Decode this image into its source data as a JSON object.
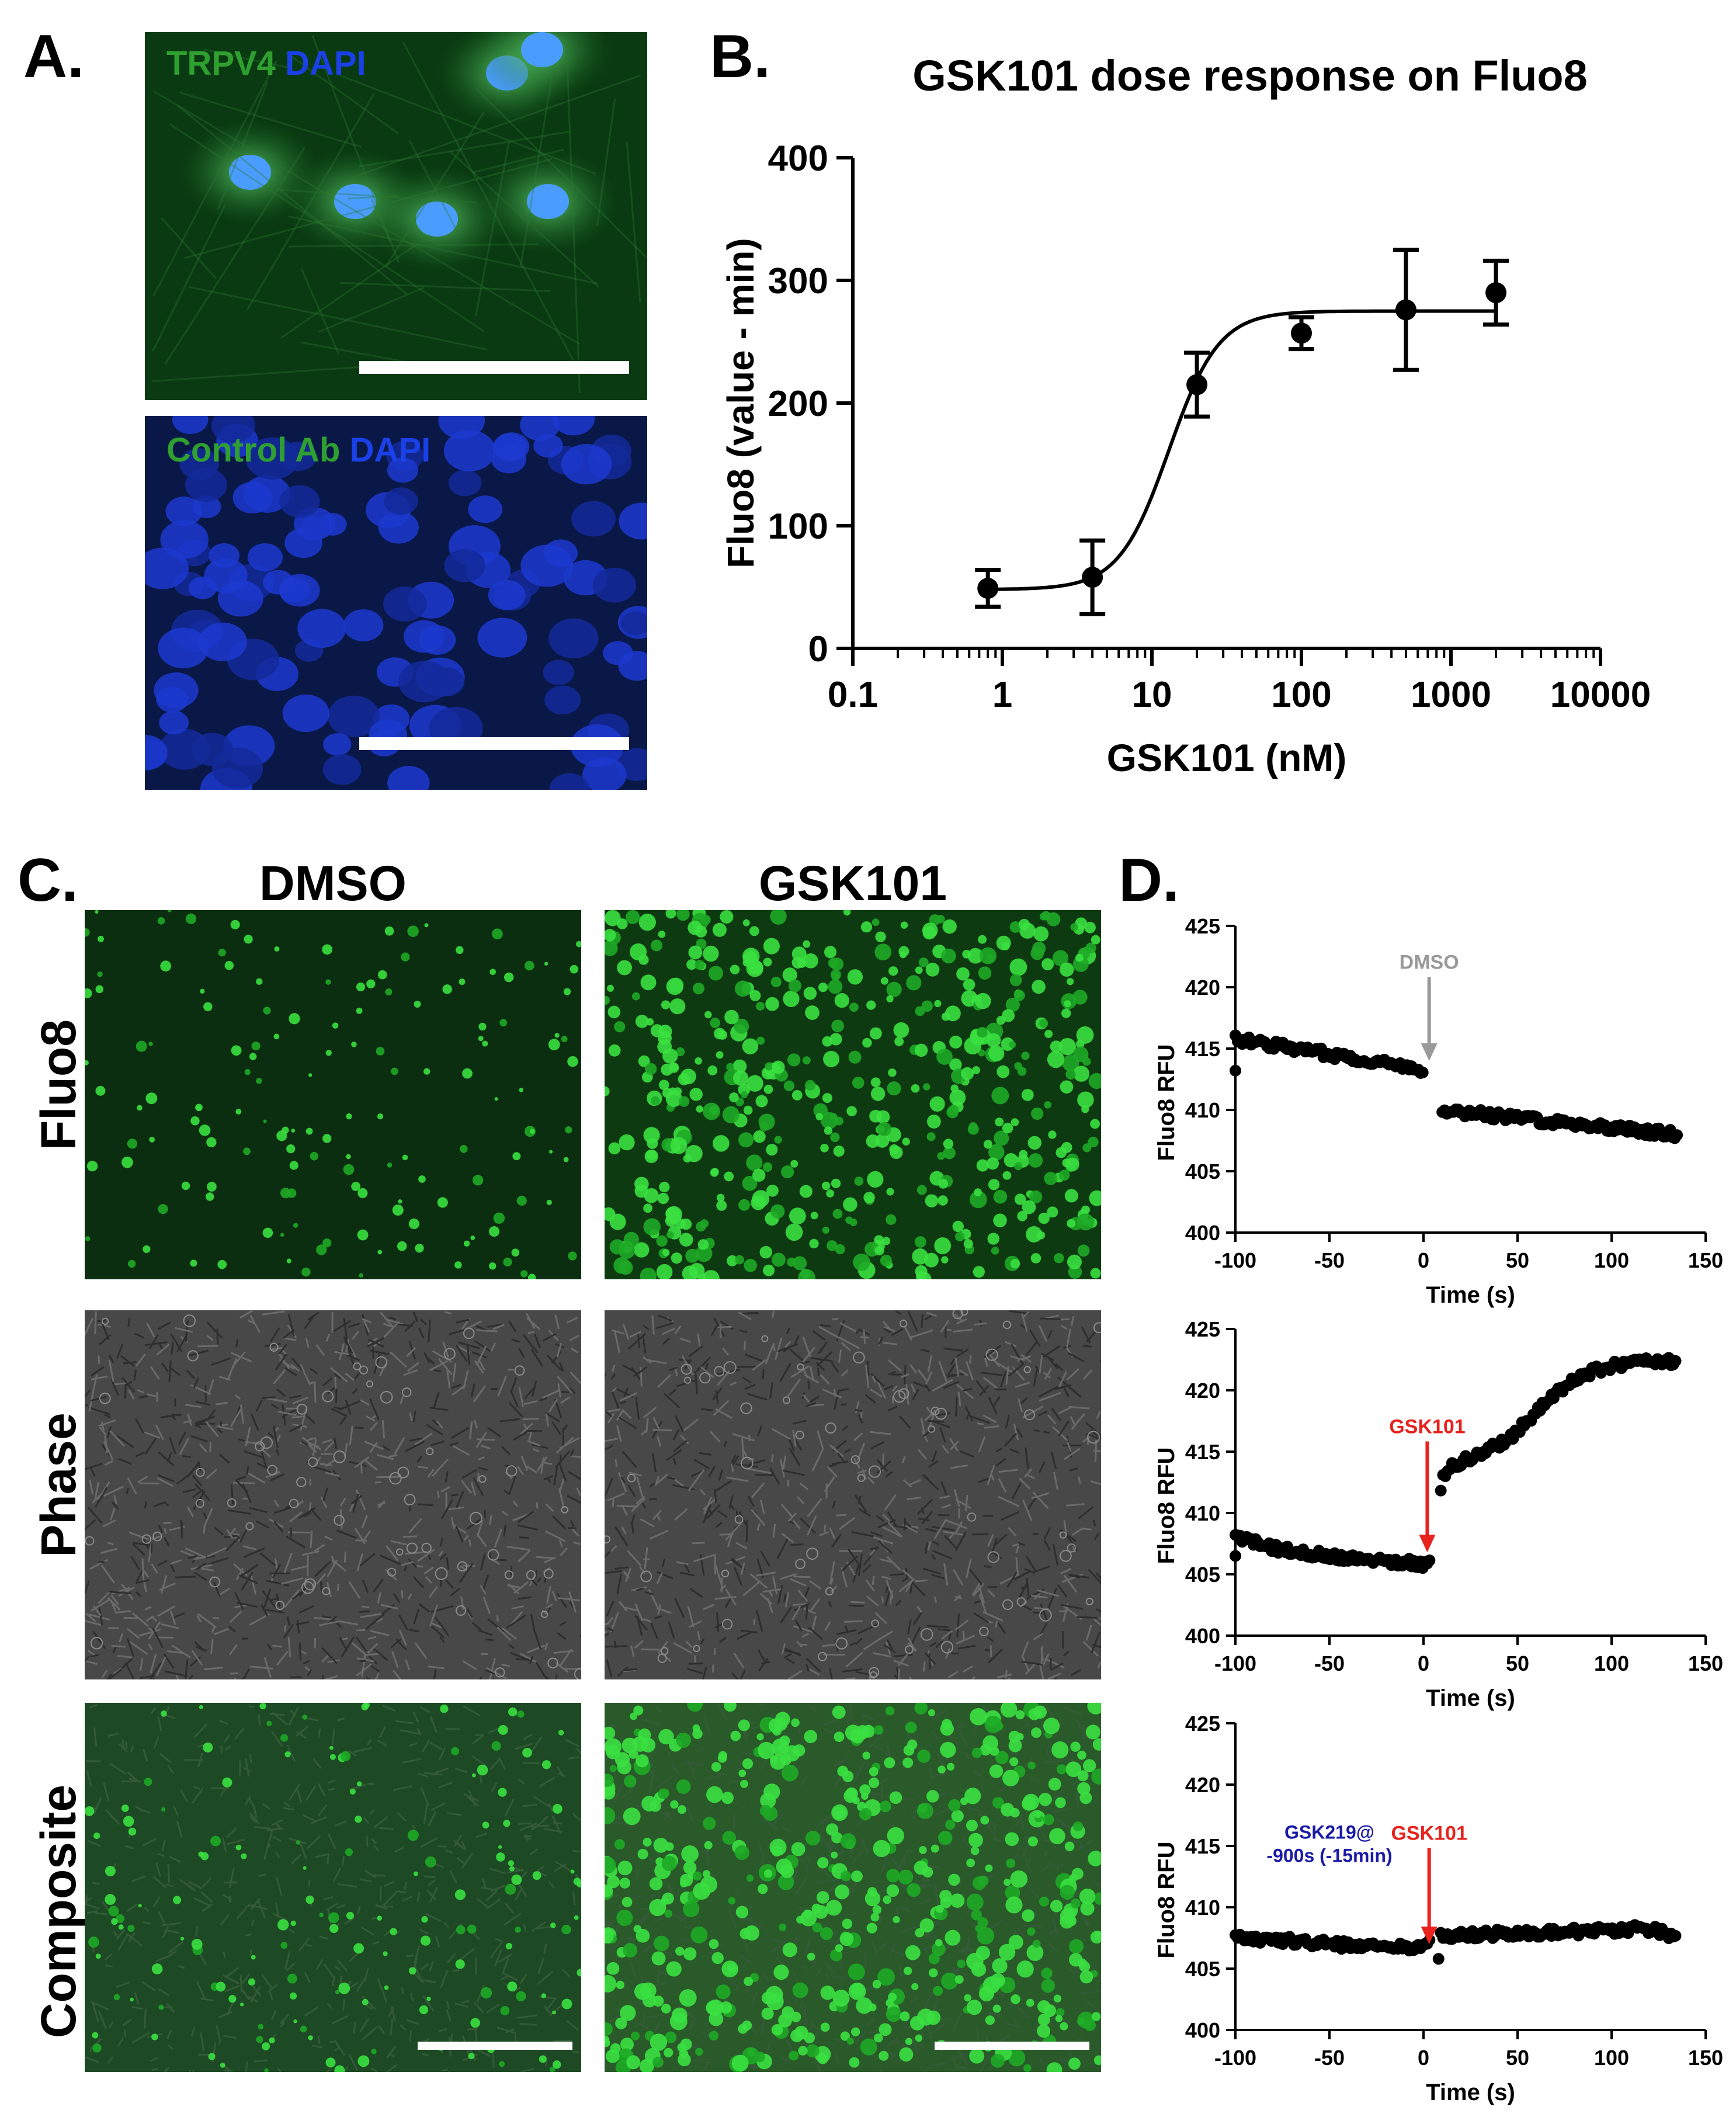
{
  "panels": {
    "A": {
      "letter": "A.",
      "images": [
        {
          "label_parts": [
            {
              "text": "TRPV4",
              "color": "#2fa030"
            },
            {
              "text": "DAPI",
              "color": "#1a40e8"
            }
          ],
          "style": "trpv4"
        },
        {
          "label_parts": [
            {
              "text": "Control Ab",
              "color": "#2fa030"
            },
            {
              "text": "DAPI",
              "color": "#1a40e8"
            }
          ],
          "style": "control"
        }
      ]
    },
    "B": {
      "letter": "B."
    },
    "C": {
      "letter": "C.",
      "columns": [
        "DMSO",
        "GSK101"
      ],
      "rows": [
        "Fluo8",
        "Phase",
        "Composite"
      ]
    },
    "D": {
      "letter": "D."
    }
  },
  "colors": {
    "green_label": "#2fa030",
    "blue_label": "#1a40e8",
    "dmso_arrow": "#999999",
    "gsk101_arrow": "#e8221c",
    "gsk219_text": "#1a1aa8"
  },
  "chart_data": [
    {
      "id": "B",
      "type": "scatter",
      "title": "GSK101 dose response on Fluo8",
      "xlabel": "GSK101 (nM)",
      "ylabel": "Fluo8 (value - min)",
      "xscale": "log",
      "xlim": [
        0.1,
        10000
      ],
      "ylim": [
        0,
        400
      ],
      "xticks": [
        0.1,
        1,
        10,
        100,
        1000,
        10000
      ],
      "xtick_labels": [
        "0.1",
        "1",
        "10",
        "100",
        "1000",
        "10000"
      ],
      "yticks": [
        0,
        100,
        200,
        300,
        400
      ],
      "ytick_labels": [
        "0",
        "100",
        "200",
        "300",
        "400"
      ],
      "x": [
        0.8,
        4,
        20,
        100,
        500,
        2000
      ],
      "y": [
        49,
        58,
        215,
        257,
        276,
        290
      ],
      "yerr": [
        15,
        30,
        26,
        13,
        49,
        26
      ],
      "fit": {
        "bottom": 48,
        "top": 275,
        "ec50": 13,
        "hill": 2.6
      }
    },
    {
      "id": "D1",
      "type": "scatter",
      "xlabel": "Time (s)",
      "ylabel": "Fluo8 RFU",
      "xlim": [
        -100,
        150
      ],
      "ylim": [
        400,
        425
      ],
      "xticks": [
        -100,
        -50,
        0,
        50,
        100,
        150
      ],
      "xtick_labels": [
        "-100",
        "-50",
        "0",
        "50",
        "100",
        "150"
      ],
      "yticks": [
        400,
        405,
        410,
        415,
        420,
        425
      ],
      "ytick_labels": [
        "400",
        "405",
        "410",
        "415",
        "420",
        "425"
      ],
      "segments": [
        {
          "x_start": -100,
          "x_end": 0,
          "y_start": 415.8,
          "y_end": 413.3
        },
        {
          "x_start": 10,
          "x_end": 135,
          "y_start": 410.0,
          "y_end": 408.0
        }
      ],
      "outliers": [
        {
          "x": -100,
          "y": 413.2
        }
      ],
      "annotation": {
        "text": "DMSO",
        "x": 3,
        "y_text": 421.5,
        "y_tip": 414.0,
        "color": "#999999"
      }
    },
    {
      "id": "D2",
      "type": "scatter",
      "xlabel": "Time (s)",
      "ylabel": "Fluo8 RFU",
      "xlim": [
        -100,
        150
      ],
      "ylim": [
        400,
        425
      ],
      "xticks": [
        -100,
        -50,
        0,
        50,
        100,
        150
      ],
      "xtick_labels": [
        "-100",
        "-50",
        "0",
        "50",
        "100",
        "150"
      ],
      "yticks": [
        400,
        405,
        410,
        415,
        420,
        425
      ],
      "ytick_labels": [
        "400",
        "405",
        "410",
        "415",
        "420",
        "425"
      ],
      "points_curve": [
        [
          -100,
          408.0
        ],
        [
          -75,
          407.0
        ],
        [
          -50,
          406.5
        ],
        [
          -25,
          406.2
        ],
        [
          0,
          405.8
        ],
        [
          5,
          406.0
        ],
        [
          10,
          412.8
        ],
        [
          15,
          413.8
        ],
        [
          25,
          414.5
        ],
        [
          35,
          415.2
        ],
        [
          45,
          416.0
        ],
        [
          55,
          417.5
        ],
        [
          65,
          419.0
        ],
        [
          75,
          420.3
        ],
        [
          85,
          421.2
        ],
        [
          95,
          421.8
        ],
        [
          105,
          422.1
        ],
        [
          115,
          422.3
        ],
        [
          125,
          422.5
        ],
        [
          135,
          422.2
        ]
      ],
      "outliers": [
        {
          "x": -100,
          "y": 406.5
        }
      ],
      "annotation": {
        "text": "GSK101",
        "x": 2,
        "y_text": 416.5,
        "y_tip": 406.8,
        "color": "#e8221c"
      }
    },
    {
      "id": "D3",
      "type": "scatter",
      "xlabel": "Time (s)",
      "ylabel": "Fluo8 RFU",
      "xlim": [
        -100,
        150
      ],
      "ylim": [
        400,
        425
      ],
      "xticks": [
        -100,
        -50,
        0,
        50,
        100,
        150
      ],
      "xtick_labels": [
        "-100",
        "-50",
        "0",
        "50",
        "100",
        "150"
      ],
      "yticks": [
        400,
        405,
        410,
        415,
        420,
        425
      ],
      "ytick_labels": [
        "400",
        "405",
        "410",
        "415",
        "420",
        "425"
      ],
      "points_curve": [
        [
          -100,
          407.6
        ],
        [
          -50,
          407.0
        ],
        [
          0,
          406.7
        ],
        [
          10,
          407.7
        ],
        [
          50,
          407.9
        ],
        [
          100,
          408.1
        ],
        [
          115,
          408.3
        ],
        [
          125,
          408.1
        ],
        [
          135,
          407.3
        ]
      ],
      "outliers": [
        {
          "x": 8,
          "y": 405.8
        }
      ],
      "annotation": {
        "text": "GSK101",
        "x": 3,
        "y_text": 415.5,
        "y_tip": 407.0,
        "color": "#e8221c"
      },
      "annotation2": {
        "lines": [
          "GSK219@",
          "-900s (-15min)"
        ],
        "color": "#1a1aa8"
      }
    }
  ]
}
